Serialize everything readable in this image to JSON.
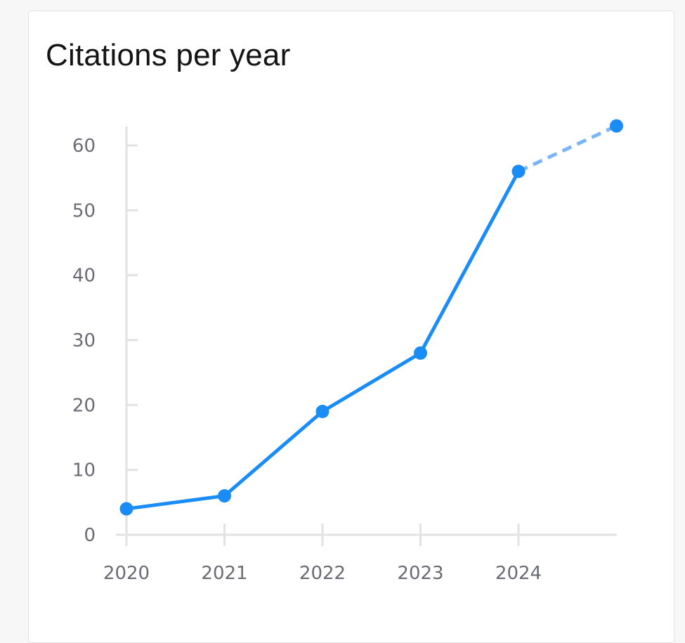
{
  "card": {
    "title": "Citations per year"
  },
  "colors": {
    "line": "#1a8cf5",
    "projection": "#7ab5f5",
    "axis": "#e2e2e2",
    "tick_text": "#6b6b75"
  },
  "chart_data": {
    "type": "line",
    "title": "Citations per year",
    "xlabel": "",
    "ylabel": "",
    "categories": [
      "2020",
      "2021",
      "2022",
      "2023",
      "2024"
    ],
    "series": [
      {
        "values": [
          4,
          6,
          19,
          28,
          56
        ],
        "projected_next": 63,
        "projected_style": "dashed"
      }
    ],
    "yticks": [
      0,
      10,
      20,
      30,
      40,
      50,
      60
    ],
    "ylim": [
      0,
      63
    ],
    "grid": false
  }
}
